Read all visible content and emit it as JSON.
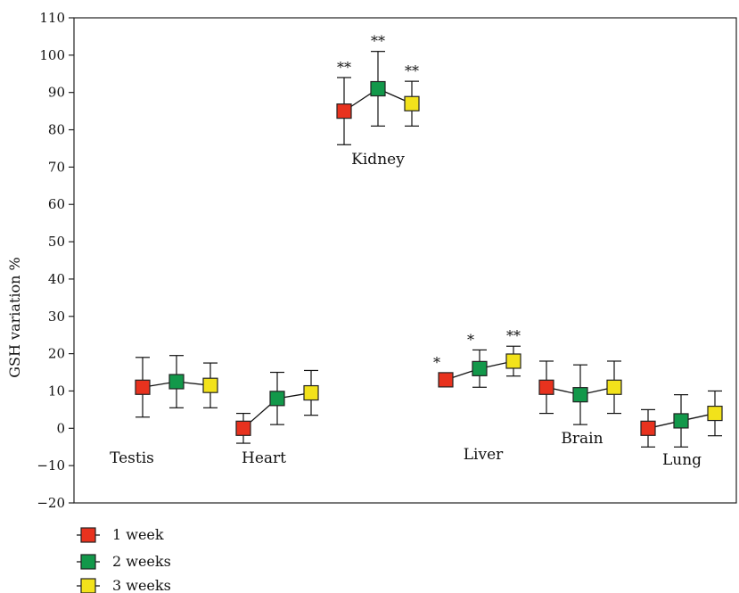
{
  "chart_data": {
    "type": "scatter",
    "title": "",
    "xlabel": "",
    "ylabel": "GSH variation %",
    "ylim": [
      -20,
      110
    ],
    "yticks": [
      -20,
      -10,
      0,
      10,
      20,
      30,
      40,
      50,
      60,
      70,
      80,
      90,
      100,
      110
    ],
    "grid": false,
    "legend_position": "bottom-left",
    "series": [
      {
        "name": "1 week",
        "color": "#e8321e"
      },
      {
        "name": "2 weeks",
        "color": "#12984a"
      },
      {
        "name": "3 weeks",
        "color": "#f2e21b"
      }
    ],
    "groups": [
      {
        "organ": "Testis",
        "points": [
          {
            "mean": 11,
            "lower": 3,
            "upper": 19,
            "sig": ""
          },
          {
            "mean": 12.5,
            "lower": 5.5,
            "upper": 19.5,
            "sig": ""
          },
          {
            "mean": 11.5,
            "lower": 5.5,
            "upper": 17.5,
            "sig": ""
          }
        ]
      },
      {
        "organ": "Heart",
        "points": [
          {
            "mean": 0,
            "lower": -4,
            "upper": 4,
            "sig": ""
          },
          {
            "mean": 8,
            "lower": 1,
            "upper": 15,
            "sig": ""
          },
          {
            "mean": 9.5,
            "lower": 3.5,
            "upper": 15.5,
            "sig": ""
          }
        ]
      },
      {
        "organ": "Kidney",
        "points": [
          {
            "mean": 85,
            "lower": 76,
            "upper": 94,
            "sig": "**"
          },
          {
            "mean": 91,
            "lower": 81,
            "upper": 101,
            "sig": "**"
          },
          {
            "mean": 87,
            "lower": 81,
            "upper": 93,
            "sig": "**"
          }
        ]
      },
      {
        "organ": "Liver",
        "points": [
          {
            "mean": 13,
            "lower": 13,
            "upper": 13,
            "sig": "*"
          },
          {
            "mean": 16,
            "lower": 11,
            "upper": 21,
            "sig": "*"
          },
          {
            "mean": 18,
            "lower": 14,
            "upper": 22,
            "sig": "**"
          }
        ]
      },
      {
        "organ": "Brain",
        "points": [
          {
            "mean": 11,
            "lower": 4,
            "upper": 18,
            "sig": ""
          },
          {
            "mean": 9,
            "lower": 1,
            "upper": 17,
            "sig": ""
          },
          {
            "mean": 11,
            "lower": 4,
            "upper": 18,
            "sig": ""
          }
        ]
      },
      {
        "organ": "Lung",
        "points": [
          {
            "mean": 0,
            "lower": -5,
            "upper": 5,
            "sig": ""
          },
          {
            "mean": 2,
            "lower": -5,
            "upper": 9,
            "sig": ""
          },
          {
            "mean": 4,
            "lower": -2,
            "upper": 10,
            "sig": ""
          }
        ]
      }
    ]
  }
}
